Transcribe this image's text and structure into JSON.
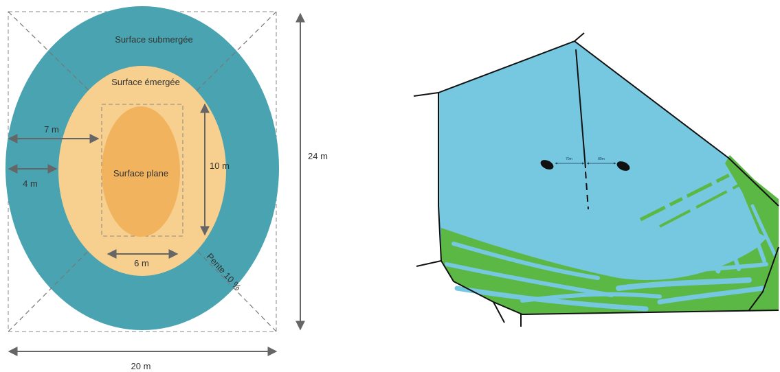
{
  "colors": {
    "submerged": "#4aa3b0",
    "emerged": "#f7cf8e",
    "plane": "#f2b35e",
    "water": "#75c8e0",
    "vegetation": "#5cb845",
    "outline": "#111111",
    "dim_arrow": "#666666",
    "dashed": "#888888"
  },
  "left_diagram": {
    "labels": {
      "submerged": "Surface submergée",
      "emerged": "Surface émergée",
      "plane": "Surface plane",
      "slope": "Pente 10 %"
    },
    "dimensions": {
      "width_total": "20 m",
      "height_total": "24 m",
      "inner_height": "10 m",
      "inner_width": "6 m",
      "emerged_band": "7 m",
      "submerged_band": "4 m"
    }
  },
  "right_map": {
    "distance_left": "70m",
    "distance_right": "80m"
  }
}
